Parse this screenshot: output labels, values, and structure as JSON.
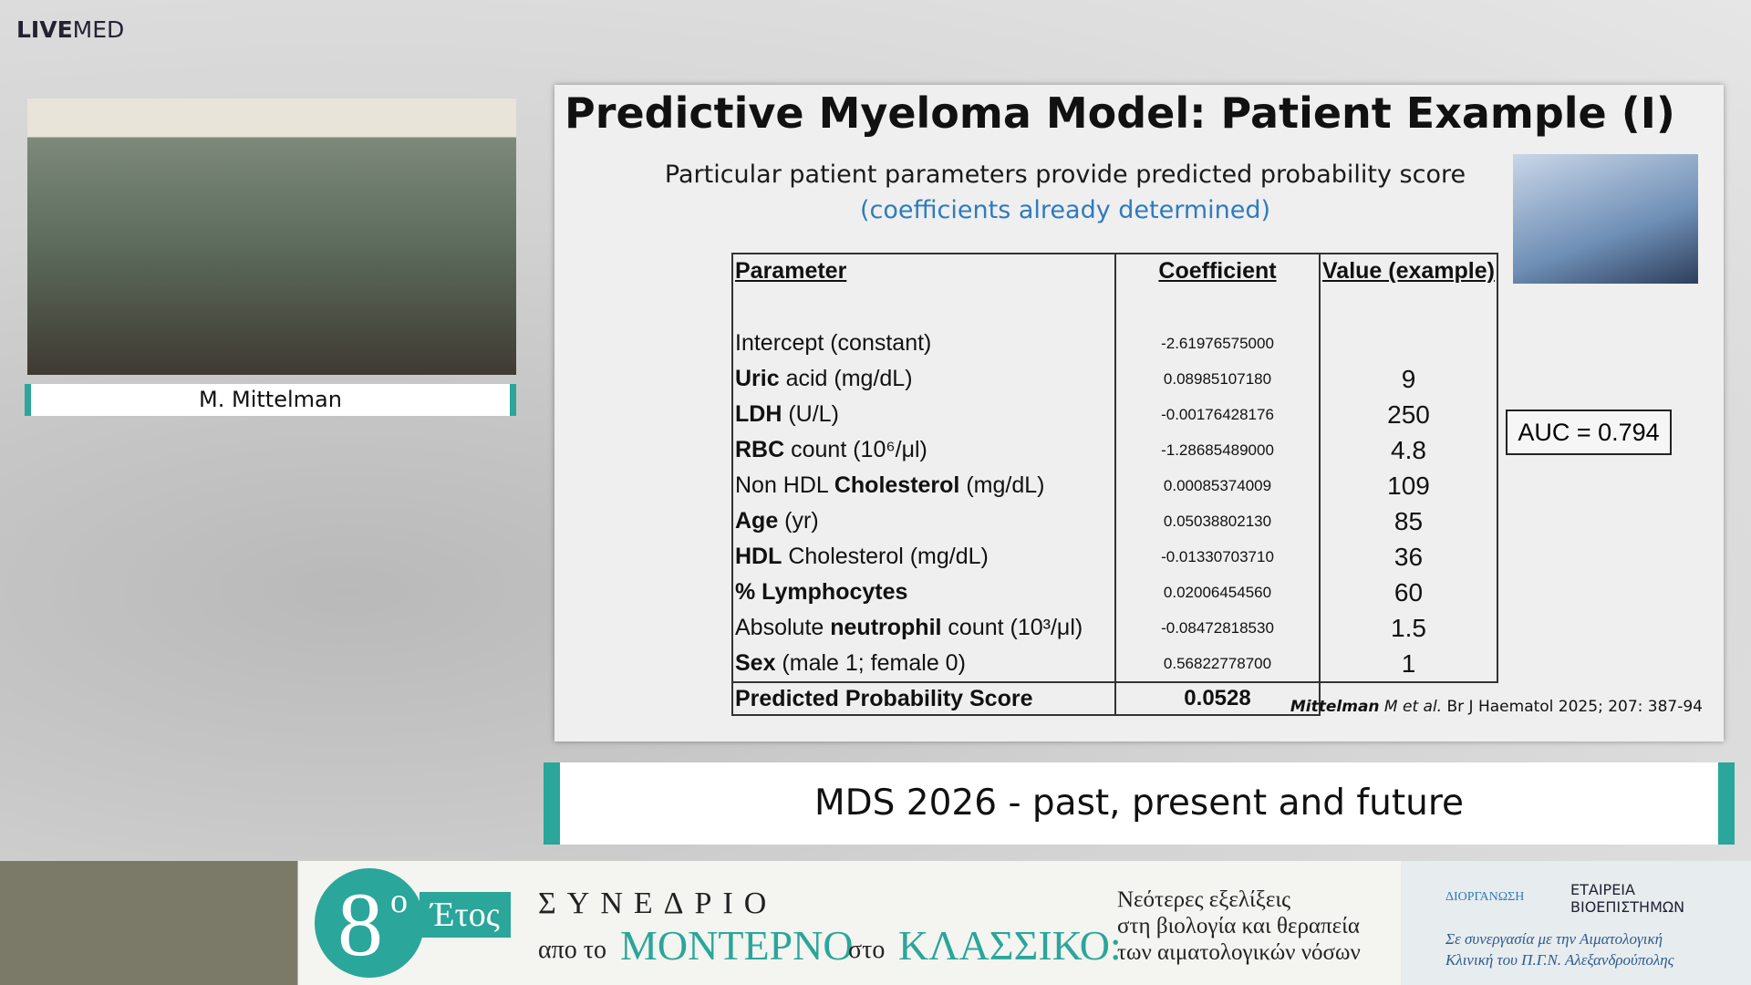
{
  "logo": {
    "bold": "LIVE",
    "rest": "MED"
  },
  "speaker": {
    "name": "M. Mittelman"
  },
  "slide": {
    "title": "Predictive Myeloma Model: Patient Example (I)",
    "subtitle": "Particular patient parameters provide predicted probability score",
    "note": "(coefficients already determined)",
    "table": {
      "headers": [
        "Parameter",
        "Coefficient",
        "Value (example)"
      ],
      "rows": [
        {
          "parameter": [
            {
              "text": "Intercept (constant)",
              "bold": false
            }
          ],
          "coefficient": "-2.61976575000",
          "value": ""
        },
        {
          "parameter": [
            {
              "text": "Uric",
              "bold": true
            },
            {
              "text": " acid (mg/dL)",
              "bold": false
            }
          ],
          "coefficient": "0.08985107180",
          "value": "9"
        },
        {
          "parameter": [
            {
              "text": "LDH",
              "bold": true
            },
            {
              "text": " (U/L)",
              "bold": false
            }
          ],
          "coefficient": "-0.00176428176",
          "value": "250"
        },
        {
          "parameter": [
            {
              "text": "RBC",
              "bold": true
            },
            {
              "text": " count (10⁶/μl)",
              "bold": false
            }
          ],
          "coefficient": "-1.28685489000",
          "value": "4.8"
        },
        {
          "parameter": [
            {
              "text": "Non HDL ",
              "bold": false
            },
            {
              "text": "Cholesterol",
              "bold": true
            },
            {
              "text": " (mg/dL)",
              "bold": false
            }
          ],
          "coefficient": "0.00085374009",
          "value": "109"
        },
        {
          "parameter": [
            {
              "text": "Age",
              "bold": true
            },
            {
              "text": " (yr)",
              "bold": false
            }
          ],
          "coefficient": "0.05038802130",
          "value": "85"
        },
        {
          "parameter": [
            {
              "text": "HDL",
              "bold": true
            },
            {
              "text": " Cholesterol (mg/dL)",
              "bold": false
            }
          ],
          "coefficient": "-0.01330703710",
          "value": "36"
        },
        {
          "parameter": [
            {
              "text": "% Lymphocytes",
              "bold": true
            }
          ],
          "coefficient": "0.02006454560",
          "value": "60"
        },
        {
          "parameter": [
            {
              "text": "Absolute ",
              "bold": false
            },
            {
              "text": "neutrophil",
              "bold": true
            },
            {
              "text": " count (10³/μl)",
              "bold": false
            }
          ],
          "coefficient": "-0.08472818530",
          "value": "1.5"
        },
        {
          "parameter": [
            {
              "text": "Sex",
              "bold": true
            },
            {
              "text": " (male 1; female 0)",
              "bold": false
            }
          ],
          "coefficient": "0.56822778700",
          "value": "1"
        }
      ],
      "score": {
        "label": "Predicted Probability Score",
        "value": "0.0528"
      }
    },
    "auc": "AUC = 0.794",
    "citation": {
      "author": "Mittelman",
      "etal": " M et al.",
      "ref": " Br J Haematol 2025; 207: 387-94"
    }
  },
  "banner": {
    "title": "MDS 2026 - past, present and future"
  },
  "footer": {
    "edition": "8",
    "edition_sup": "ο",
    "edition_word": "Έτος",
    "congress": "ΣΥΝΕΔΡΙΟ",
    "from": "απο το",
    "modern": "ΜΟΝΤΕΡΝΟ",
    "to": "στο",
    "classic": "ΚΛΑΣΣΙΚΟ:",
    "topic": [
      "Νεότερες εξελίξεις",
      "στη βιολογία και θεραπεία",
      "των αιματολογικών νόσων"
    ],
    "organizer": "ΔΙΟΡΓΑΝΩΣΗ",
    "society": [
      "ΕΤΑΙΡΕΙΑ",
      "ΒΙΟΕΠΙΣΤΗΜΩΝ"
    ],
    "partner": [
      "Σε συνεργασία με την Αιματολογική",
      "Κλινική του Π.Γ.Ν. Αλεξανδρούπολης"
    ]
  }
}
